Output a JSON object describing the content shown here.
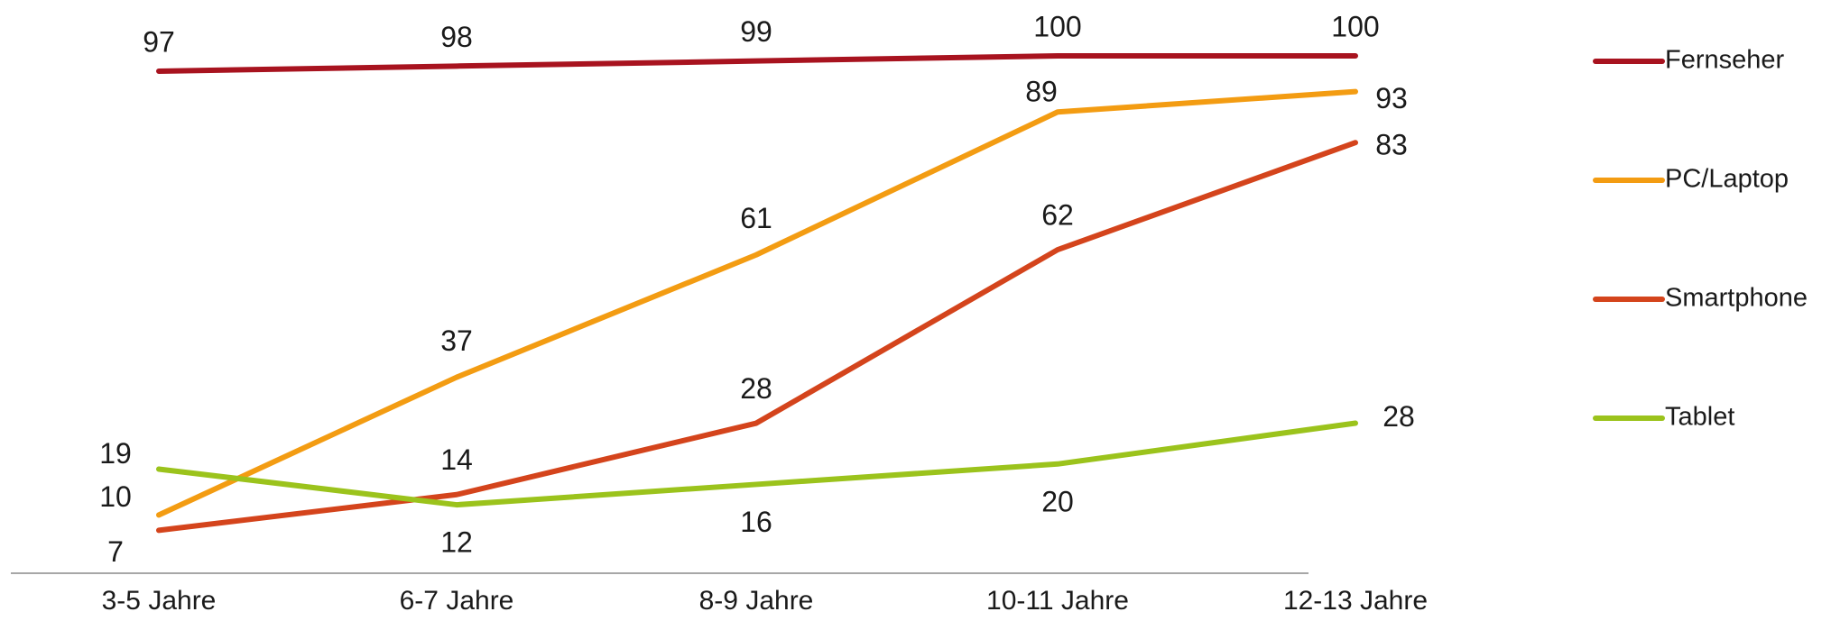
{
  "chart_data": {
    "type": "line",
    "title": "",
    "xlabel": "",
    "ylabel": "",
    "categories": [
      "3-5 Jahre",
      "6-7 Jahre",
      "8-9 Jahre",
      "10-11 Jahre",
      "12-13 Jahre"
    ],
    "ylim": [
      0,
      100
    ],
    "grid": false,
    "legend_position": "right",
    "series": [
      {
        "name": "Fernseher",
        "color": "#a8131f",
        "values": [
          97,
          98,
          99,
          100,
          100
        ]
      },
      {
        "name": "PC/Laptop",
        "color": "#f39c12",
        "values": [
          10,
          37,
          61,
          89,
          93
        ]
      },
      {
        "name": "Smartphone",
        "color": "#d4441c",
        "values": [
          7,
          14,
          28,
          62,
          83
        ]
      },
      {
        "name": "Tablet",
        "color": "#9bc31c",
        "values": [
          19,
          12,
          16,
          20,
          28
        ]
      }
    ]
  }
}
